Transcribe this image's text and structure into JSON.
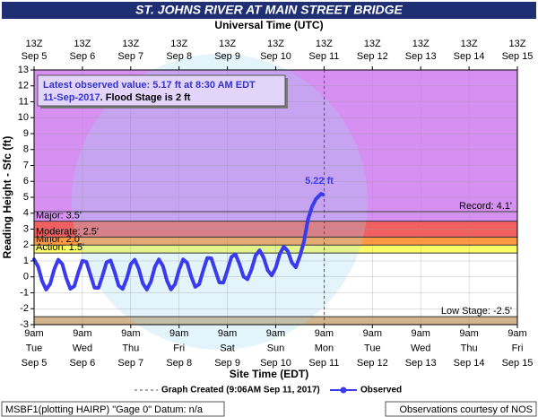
{
  "chart_data": {
    "type": "line",
    "title": "ST. JOHNS RIVER AT MAIN STREET BRIDGE",
    "x2_axis_label": "Universal Time (UTC)",
    "x_axis_label": "Site Time (EDT)",
    "y_axis_label": "Reading Height - Sfc (ft)",
    "ylim": [
      -3,
      13
    ],
    "yticks": [
      -3,
      -2,
      -1,
      0,
      1,
      2,
      3,
      4,
      5,
      6,
      7,
      8,
      9,
      10,
      11,
      12,
      13
    ],
    "xlim": [
      "2017-09-05 09:00",
      "2017-09-15 09:00"
    ],
    "xticks": [
      {
        "value": "2017-09-05 09:00",
        "label": [
          "9am",
          "Tue",
          "Sep 5"
        ]
      },
      {
        "value": "2017-09-06 09:00",
        "label": [
          "9am",
          "Wed",
          "Sep 6"
        ]
      },
      {
        "value": "2017-09-07 09:00",
        "label": [
          "9am",
          "Thu",
          "Sep 7"
        ]
      },
      {
        "value": "2017-09-08 09:00",
        "label": [
          "9am",
          "Fri",
          "Sep 8"
        ]
      },
      {
        "value": "2017-09-09 09:00",
        "label": [
          "9am",
          "Sat",
          "Sep 9"
        ]
      },
      {
        "value": "2017-09-10 09:00",
        "label": [
          "9am",
          "Sun",
          "Sep 10"
        ]
      },
      {
        "value": "2017-09-11 09:00",
        "label": [
          "9am",
          "Mon",
          "Sep 11"
        ]
      },
      {
        "value": "2017-09-12 09:00",
        "label": [
          "9am",
          "Tue",
          "Sep 12"
        ]
      },
      {
        "value": "2017-09-13 09:00",
        "label": [
          "9am",
          "Wed",
          "Sep 13"
        ]
      },
      {
        "value": "2017-09-14 09:00",
        "label": [
          "9am",
          "Thu",
          "Sep 14"
        ]
      },
      {
        "value": "2017-09-15 09:00",
        "label": [
          "9am",
          "Fri",
          "Sep 15"
        ]
      }
    ],
    "x2ticks": [
      {
        "value": "2017-09-05 09:00",
        "label": [
          "13Z",
          "Sep 5"
        ]
      },
      {
        "value": "2017-09-06 09:00",
        "label": [
          "13Z",
          "Sep 6"
        ]
      },
      {
        "value": "2017-09-07 09:00",
        "label": [
          "13Z",
          "Sep 7"
        ]
      },
      {
        "value": "2017-09-08 09:00",
        "label": [
          "13Z",
          "Sep 8"
        ]
      },
      {
        "value": "2017-09-09 09:00",
        "label": [
          "13Z",
          "Sep 9"
        ]
      },
      {
        "value": "2017-09-10 09:00",
        "label": [
          "13Z",
          "Sep 10"
        ]
      },
      {
        "value": "2017-09-11 09:00",
        "label": [
          "13Z",
          "Sep 11"
        ]
      },
      {
        "value": "2017-09-12 09:00",
        "label": [
          "13Z",
          "Sep 12"
        ]
      },
      {
        "value": "2017-09-13 09:00",
        "label": [
          "13Z",
          "Sep 13"
        ]
      },
      {
        "value": "2017-09-14 09:00",
        "label": [
          "13Z",
          "Sep 14"
        ]
      },
      {
        "value": "2017-09-15 09:00",
        "label": [
          "13Z",
          "Sep 15"
        ]
      }
    ],
    "grid": true,
    "flood_categories": [
      {
        "label": "Low Stage: -2.5'",
        "value": -2.5,
        "color": "#d2b48c",
        "fill": "below",
        "label_side": "right"
      },
      {
        "label": "Action: 1.5'",
        "value": 1.5,
        "color": "#ffff66",
        "fill": "above",
        "label_side": "left"
      },
      {
        "label": "Minor: 2.0'",
        "value": 2.0,
        "color": "#ff9944",
        "fill": "above",
        "label_side": "left"
      },
      {
        "label": "Moderate: 2.5'",
        "value": 2.5,
        "color": "#f06060",
        "fill": "above",
        "label_side": "left"
      },
      {
        "label": "Major: 3.5'",
        "value": 3.5,
        "color": "#d690f2",
        "fill": "above",
        "label_side": "left"
      },
      {
        "label": "Record: 4.1'",
        "value": 4.1,
        "color": null,
        "fill": "none",
        "label_side": "right"
      }
    ],
    "latest": {
      "line1": "Latest observed value: 5.17 ft at 8:30 AM EDT",
      "date": "11-Sep-2017",
      "rest": ". Flood Stage is 2 ft"
    },
    "graph_created": {
      "x": "2017-09-11 09:06",
      "label": "Graph Created (9:06AM Sep 11, 2017)"
    },
    "series": [
      {
        "name": "Observed",
        "color": "#3a3aee",
        "x": [
          "2017-09-05 09:00",
          "2017-09-05 11:00",
          "2017-09-05 13:00",
          "2017-09-05 15:00",
          "2017-09-05 17:00",
          "2017-09-05 19:00",
          "2017-09-05 21:00",
          "2017-09-05 23:00",
          "2017-09-06 01:00",
          "2017-09-06 03:00",
          "2017-09-06 05:00",
          "2017-09-06 07:00",
          "2017-09-06 09:00",
          "2017-09-06 11:00",
          "2017-09-06 13:00",
          "2017-09-06 15:00",
          "2017-09-06 17:00",
          "2017-09-06 19:00",
          "2017-09-06 21:00",
          "2017-09-06 23:00",
          "2017-09-07 01:00",
          "2017-09-07 03:00",
          "2017-09-07 05:00",
          "2017-09-07 07:00",
          "2017-09-07 09:00",
          "2017-09-07 11:00",
          "2017-09-07 13:00",
          "2017-09-07 15:00",
          "2017-09-07 17:00",
          "2017-09-07 19:00",
          "2017-09-07 21:00",
          "2017-09-07 23:00",
          "2017-09-08 01:00",
          "2017-09-08 03:00",
          "2017-09-08 05:00",
          "2017-09-08 07:00",
          "2017-09-08 09:00",
          "2017-09-08 11:00",
          "2017-09-08 13:00",
          "2017-09-08 15:00",
          "2017-09-08 17:00",
          "2017-09-08 19:00",
          "2017-09-08 21:00",
          "2017-09-08 23:00",
          "2017-09-09 01:00",
          "2017-09-09 03:00",
          "2017-09-09 05:00",
          "2017-09-09 07:00",
          "2017-09-09 09:00",
          "2017-09-09 11:00",
          "2017-09-09 13:00",
          "2017-09-09 15:00",
          "2017-09-09 17:00",
          "2017-09-09 19:00",
          "2017-09-09 21:00",
          "2017-09-09 23:00",
          "2017-09-10 01:00",
          "2017-09-10 03:00",
          "2017-09-10 05:00",
          "2017-09-10 07:00",
          "2017-09-10 09:00",
          "2017-09-10 11:00",
          "2017-09-10 13:00",
          "2017-09-10 15:00",
          "2017-09-10 17:00",
          "2017-09-10 19:00",
          "2017-09-10 21:00",
          "2017-09-10 23:00",
          "2017-09-11 01:00",
          "2017-09-11 03:00",
          "2017-09-11 05:00",
          "2017-09-11 07:00",
          "2017-09-11 07:30",
          "2017-09-11 08:30"
        ],
        "values": [
          1.1,
          0.65,
          -0.27,
          -0.8,
          -0.44,
          0.47,
          1.08,
          0.81,
          -0.08,
          -0.75,
          -0.58,
          0.28,
          1.01,
          0.94,
          0.12,
          -0.68,
          -0.69,
          0.08,
          0.92,
          1.03,
          0.31,
          -0.55,
          -0.76,
          -0.12,
          0.79,
          1.08,
          0.5,
          -0.41,
          -0.8,
          -0.3,
          0.63,
          1.1,
          0.68,
          -0.24,
          -0.79,
          -0.46,
          0.44,
          1.1,
          0.89,
          0.04,
          -0.63,
          -0.46,
          0.41,
          1.19,
          1.17,
          0.4,
          -0.35,
          -0.36,
          0.41,
          1.25,
          1.42,
          0.81,
          0.02,
          -0.15,
          0.47,
          1.34,
          1.67,
          1.21,
          0.42,
          0.09,
          0.57,
          1.43,
          1.9,
          1.62,
          0.9,
          0.6,
          1.3,
          2.2,
          3.6,
          4.4,
          4.9,
          5.15,
          5.22,
          5.17
        ],
        "value_labels": [
          null,
          null,
          null,
          null,
          null,
          null,
          null,
          null,
          null,
          null,
          null,
          null,
          null,
          null,
          null,
          null,
          null,
          null,
          null,
          null,
          null,
          null,
          null,
          null,
          null,
          null,
          null,
          null,
          null,
          null,
          null,
          null,
          null,
          null,
          null,
          null,
          null,
          null,
          null,
          null,
          null,
          null,
          null,
          null,
          null,
          null,
          null,
          null,
          null,
          null,
          null,
          null,
          null,
          null,
          null,
          null,
          null,
          null,
          null,
          null,
          null,
          null,
          null,
          null,
          null,
          null,
          null,
          null,
          null,
          null,
          null,
          null,
          "5.22 ft",
          null
        ]
      }
    ],
    "footer_left": "MSBF1(plotting HAIRP) \"Gage 0\" Datum: n/a",
    "footer_right": "Observations courtesy of NOS"
  }
}
